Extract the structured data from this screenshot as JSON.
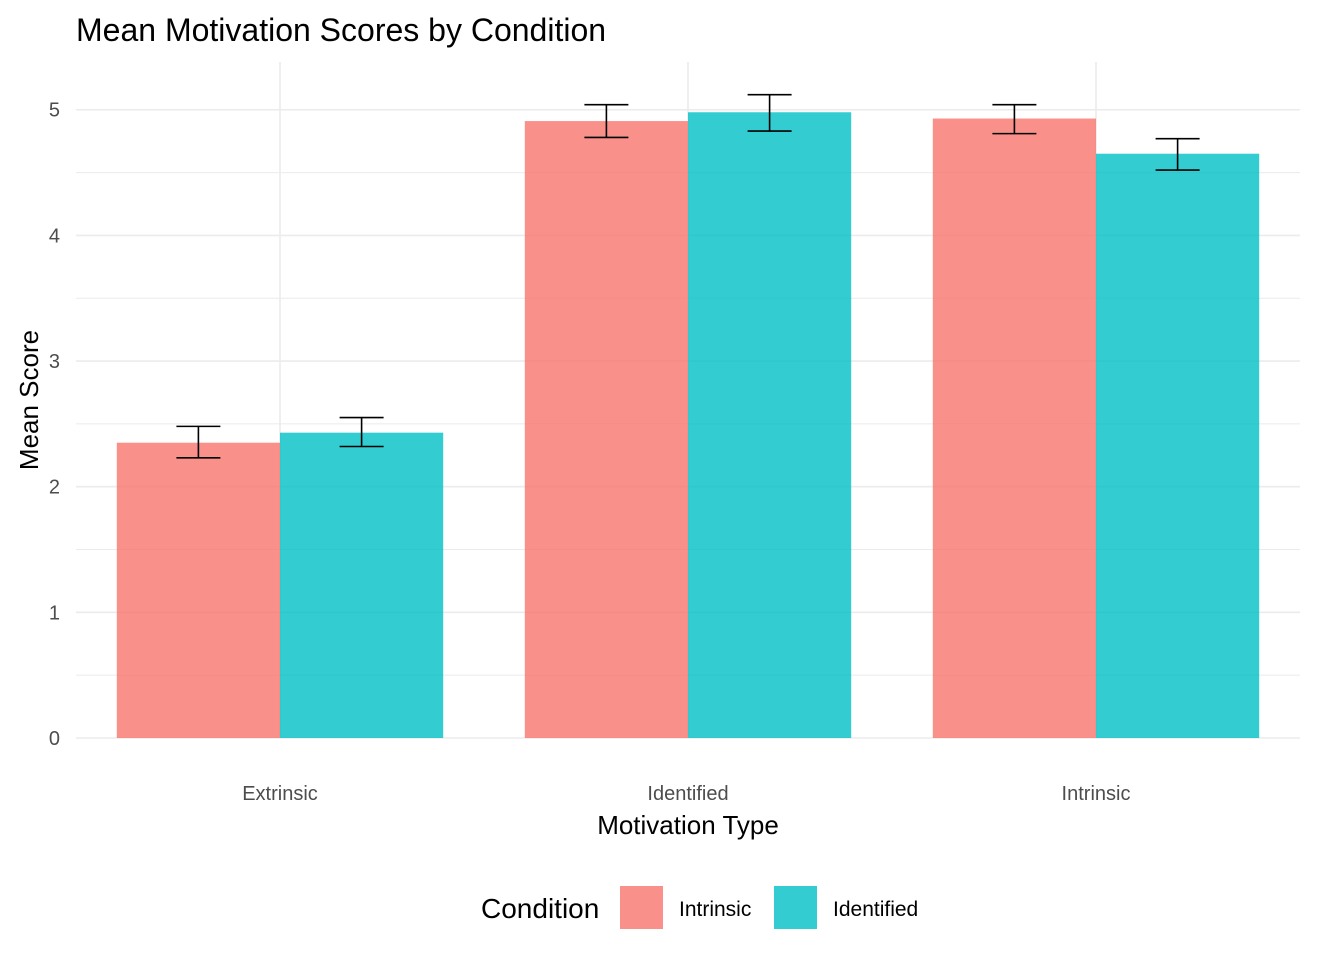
{
  "chart_data": {
    "type": "bar",
    "title": "Mean Motivation Scores by Condition",
    "xlabel": "Motivation Type",
    "ylabel": "Mean Score",
    "categories": [
      "Extrinsic",
      "Identified",
      "Intrinsic"
    ],
    "ylim": [
      0,
      5.2
    ],
    "yticks": [
      0,
      1,
      2,
      3,
      4,
      5
    ],
    "grid": true,
    "legend": {
      "title": "Condition",
      "position": "bottom"
    },
    "series": [
      {
        "name": "Intrinsic",
        "color": "#F8766D",
        "values": [
          2.35,
          4.91,
          4.93
        ],
        "error_low": [
          2.23,
          4.78,
          4.81
        ],
        "error_high": [
          2.48,
          5.04,
          5.04
        ]
      },
      {
        "name": "Identified",
        "color": "#00BFC4",
        "values": [
          2.43,
          4.98,
          4.65
        ],
        "error_low": [
          2.32,
          4.83,
          4.52
        ],
        "error_high": [
          2.55,
          5.12,
          4.77
        ]
      }
    ]
  }
}
